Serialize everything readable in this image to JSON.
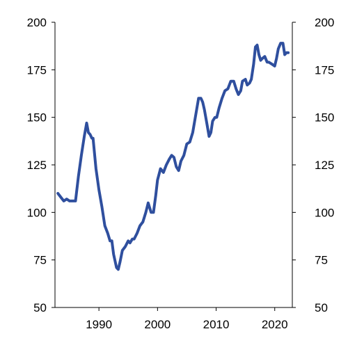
{
  "chart_data": {
    "type": "line",
    "title": "",
    "xlabel": "",
    "ylabel": "",
    "xlim": [
      1982.5,
      2023.0
    ],
    "ylim": [
      50,
      200
    ],
    "x_ticks": [
      1990,
      2000,
      2010,
      2020
    ],
    "x_tick_labels": [
      "1990",
      "2000",
      "2010",
      "2020"
    ],
    "y_ticks": [
      50,
      75,
      100,
      125,
      150,
      175,
      200
    ],
    "y_tick_labels": [
      "50",
      "75",
      "100",
      "125",
      "150",
      "175",
      "200"
    ],
    "y_axis_right_mirror": true,
    "grid": false,
    "legend": "none",
    "series": [
      {
        "color": "#2f4f9e",
        "x": [
          1983.0,
          1983.5,
          1984.0,
          1984.5,
          1985.0,
          1985.5,
          1986.0,
          1986.5,
          1987.0,
          1987.5,
          1987.9,
          1988.2,
          1988.5,
          1988.8,
          1989.0,
          1989.5,
          1990.0,
          1990.5,
          1991.0,
          1991.5,
          1991.9,
          1992.2,
          1992.5,
          1993.0,
          1993.3,
          1993.6,
          1994.0,
          1994.5,
          1995.0,
          1995.3,
          1995.7,
          1996.0,
          1996.5,
          1997.0,
          1997.5,
          1998.0,
          1998.4,
          1998.9,
          1999.3,
          1999.7,
          2000.0,
          2000.5,
          2001.0,
          2001.5,
          2002.0,
          2002.4,
          2002.8,
          2003.2,
          2003.6,
          2004.0,
          2004.5,
          2005.0,
          2005.5,
          2006.0,
          2006.5,
          2007.0,
          2007.4,
          2007.7,
          2008.0,
          2008.4,
          2008.8,
          2009.1,
          2009.4,
          2009.8,
          2010.1,
          2010.5,
          2011.0,
          2011.5,
          2012.0,
          2012.5,
          2013.0,
          2013.4,
          2013.8,
          2014.2,
          2014.5,
          2015.0,
          2015.3,
          2015.7,
          2016.0,
          2016.4,
          2016.7,
          2017.0,
          2017.3,
          2017.6,
          2017.9,
          2018.3,
          2018.7,
          2019.0,
          2019.5,
          2020.0,
          2020.3,
          2020.6,
          2021.0,
          2021.4,
          2021.7,
          2022.0,
          2022.3
        ],
        "values": [
          110,
          108,
          106,
          107,
          106,
          106,
          106,
          119,
          130,
          140,
          147,
          142,
          141,
          139,
          139,
          123,
          112,
          103,
          93,
          89,
          85,
          85,
          78,
          71,
          70,
          74,
          80,
          82,
          85,
          84,
          86,
          86,
          89,
          93,
          95,
          100,
          105,
          100,
          100,
          109,
          117,
          123,
          121,
          125,
          128,
          130,
          129,
          124,
          122,
          127,
          130,
          136,
          137,
          142,
          151,
          160,
          160,
          158,
          154,
          147,
          140,
          142,
          148,
          150,
          150,
          155,
          160,
          164,
          165,
          169,
          169,
          165,
          162,
          164,
          169,
          170,
          167,
          168,
          170,
          178,
          187,
          188,
          183,
          180,
          181,
          182,
          179,
          179,
          178,
          177,
          181,
          186,
          189,
          189,
          183,
          184,
          184
        ]
      }
    ]
  }
}
